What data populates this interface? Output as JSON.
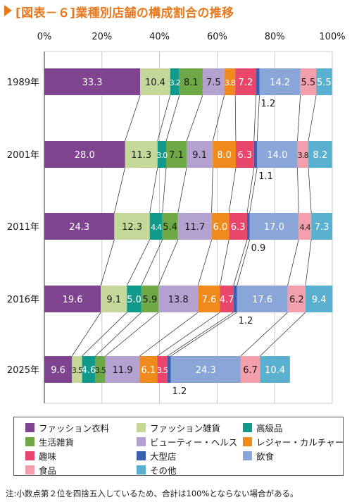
{
  "title": "[図表－６]業種別店舗の構成割合の推移",
  "note": "注:小数点第２位を四捨五入しているため、合計は100%とならない場合がある。",
  "chart_data": {
    "type": "bar",
    "orientation": "horizontal",
    "stacked": "percent",
    "xlim": [
      0,
      100
    ],
    "x_ticks": [
      "0%",
      "20%",
      "40%",
      "60%",
      "80%",
      "100%"
    ],
    "grid": true,
    "legend_position": "bottom",
    "categories": [
      "1989年",
      "2001年",
      "2011年",
      "2016年",
      "2025年"
    ],
    "series": [
      {
        "name": "ファッション衣料",
        "color": "#7f4490",
        "values": [
          33.3,
          28.0,
          24.3,
          19.6,
          9.6
        ],
        "labels": [
          "33.3",
          "28.0",
          "24.3",
          "19.6",
          "9.6"
        ]
      },
      {
        "name": "ファッション雑貨",
        "color": "#c5d89a",
        "values": [
          10.4,
          11.3,
          12.3,
          9.1,
          3.5
        ],
        "labels": [
          "10.4",
          "11.3",
          "12.3",
          "9.1",
          "3.5"
        ]
      },
      {
        "name": "高級品",
        "color": "#109a8c",
        "values": [
          3.2,
          3.0,
          4.4,
          5.0,
          4.6
        ],
        "labels": [
          "3.2",
          "3.0",
          "4.4",
          "5.0",
          "4.6"
        ]
      },
      {
        "name": "生活雑貨",
        "color": "#6ea847",
        "values": [
          8.1,
          7.1,
          5.4,
          5.9,
          3.5
        ],
        "labels": [
          "8.1",
          "7.1",
          "5.4",
          "5.9",
          "3.5"
        ]
      },
      {
        "name": "ビューティー・ヘルス",
        "color": "#b3a2d0",
        "values": [
          7.5,
          9.1,
          11.7,
          13.8,
          11.9
        ],
        "labels": [
          "7.5",
          "9.1",
          "11.7",
          "13.8",
          "11.9"
        ]
      },
      {
        "name": "レジャー・カルチャー",
        "color": "#f08a1c",
        "values": [
          3.8,
          8.0,
          6.0,
          7.6,
          6.1
        ],
        "labels": [
          "3.8",
          "8.0",
          "6.0",
          "7.6",
          "6.1"
        ]
      },
      {
        "name": "趣味",
        "color": "#e8466a",
        "values": [
          7.2,
          6.3,
          6.3,
          4.7,
          3.5
        ],
        "labels": [
          "7.2",
          "6.3",
          "6.3",
          "4.7",
          "3.5"
        ]
      },
      {
        "name": "大型店",
        "color": "#3a5fae",
        "values": [
          1.2,
          1.1,
          0.9,
          1.2,
          1.2
        ],
        "labels": [
          "1.2",
          "1.1",
          "0.9",
          "1.2",
          "1.2"
        ]
      },
      {
        "name": "飲食",
        "color": "#8aa6d8",
        "values": [
          14.2,
          14.0,
          17.0,
          17.6,
          24.3
        ],
        "labels": [
          "14.2",
          "14.0",
          "17.0",
          "17.6",
          "24.3"
        ]
      },
      {
        "name": "食品",
        "color": "#f4a0ac",
        "values": [
          5.5,
          3.8,
          4.4,
          6.2,
          6.7
        ],
        "labels": [
          "5.5",
          "3.8",
          "4.4",
          "6.2",
          "6.7"
        ]
      },
      {
        "name": "その他",
        "color": "#5ab1cf",
        "values": [
          5.5,
          8.2,
          7.3,
          9.4,
          10.4
        ],
        "labels": [
          "5.5",
          "8.2",
          "7.3",
          "9.4",
          "10.4"
        ]
      }
    ]
  }
}
